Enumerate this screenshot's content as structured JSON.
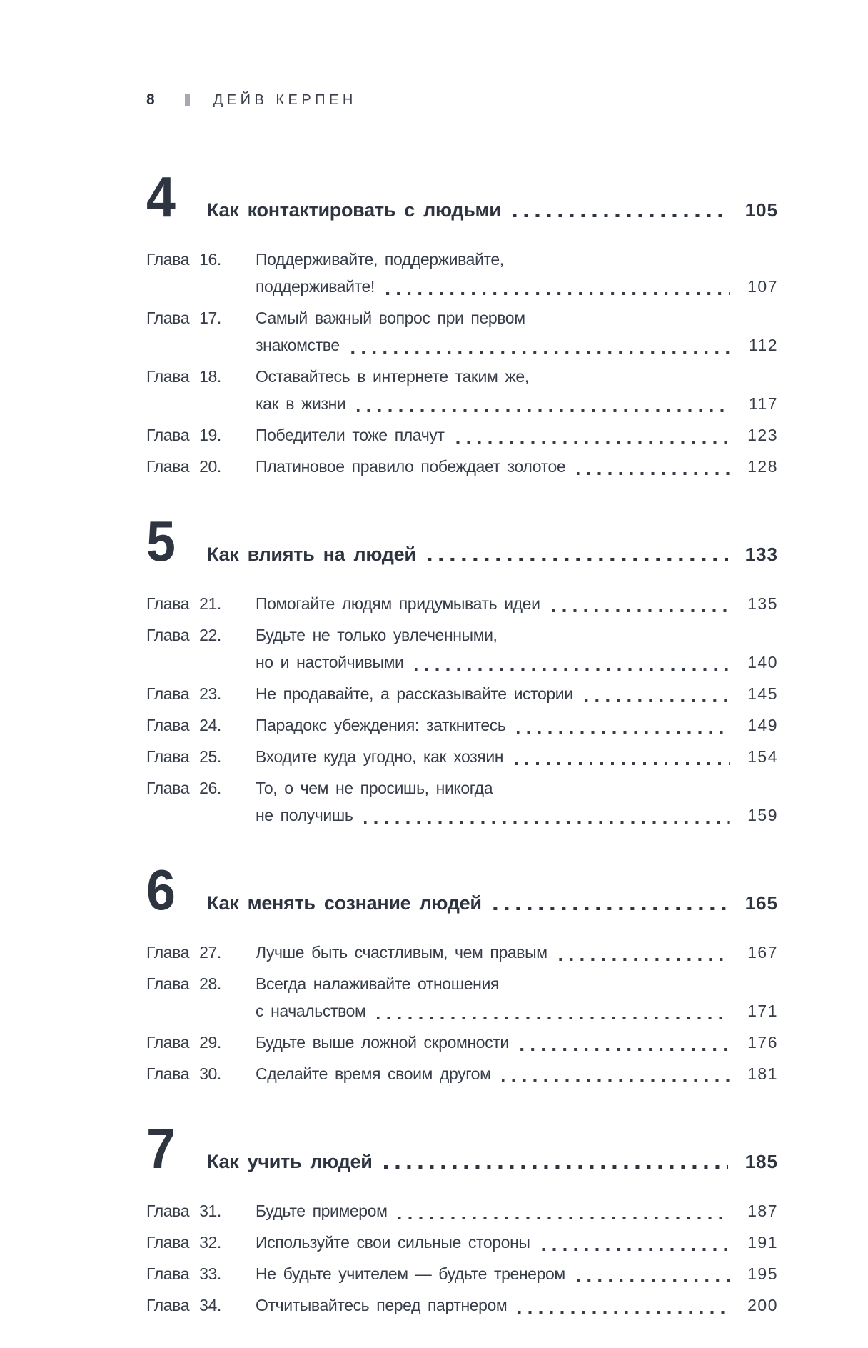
{
  "header": {
    "page_number": "8",
    "author": "ДЕЙВ КЕРПЕН"
  },
  "sections": [
    {
      "number": "4",
      "title": "Как контактировать с людьми",
      "page": "105",
      "chapters": [
        {
          "prefix": "Глава 16.",
          "lines": [
            "Поддерживайте, поддерживайте,",
            "поддерживайте!"
          ],
          "page": "107"
        },
        {
          "prefix": "Глава 17.",
          "lines": [
            "Самый важный вопрос при первом",
            "знакомстве"
          ],
          "page": "112"
        },
        {
          "prefix": "Глава 18.",
          "lines": [
            "Оставайтесь в интернете таким же,",
            "как в жизни"
          ],
          "page": "117"
        },
        {
          "prefix": "Глава 19.",
          "lines": [
            "Победители тоже плачут"
          ],
          "page": "123"
        },
        {
          "prefix": "Глава 20.",
          "lines": [
            "Платиновое правило побеждает золотое"
          ],
          "page": "128"
        }
      ]
    },
    {
      "number": "5",
      "title": "Как влиять на людей",
      "page": "133",
      "chapters": [
        {
          "prefix": "Глава 21.",
          "lines": [
            "Помогайте людям придумывать идеи"
          ],
          "page": "135"
        },
        {
          "prefix": "Глава 22.",
          "lines": [
            "Будьте не только увлеченными,",
            "но и настойчивыми"
          ],
          "page": "140"
        },
        {
          "prefix": "Глава 23.",
          "lines": [
            "Не продавайте, а рассказывайте истории"
          ],
          "page": "145"
        },
        {
          "prefix": "Глава 24.",
          "lines": [
            "Парадокс убеждения: заткнитесь"
          ],
          "page": "149"
        },
        {
          "prefix": "Глава 25.",
          "lines": [
            "Входите куда угодно, как хозяин"
          ],
          "page": "154"
        },
        {
          "prefix": "Глава 26.",
          "lines": [
            "То, о чем не просишь, никогда",
            "не получишь"
          ],
          "page": "159"
        }
      ]
    },
    {
      "number": "6",
      "title": "Как менять сознание людей",
      "page": "165",
      "chapters": [
        {
          "prefix": "Глава 27.",
          "lines": [
            "Лучше быть счастливым, чем правым"
          ],
          "page": "167"
        },
        {
          "prefix": "Глава 28.",
          "lines": [
            "Всегда налаживайте отношения",
            "с начальством"
          ],
          "page": "171"
        },
        {
          "prefix": "Глава 29.",
          "lines": [
            "Будьте выше ложной скромности"
          ],
          "page": "176"
        },
        {
          "prefix": "Глава 30.",
          "lines": [
            "Сделайте время своим другом"
          ],
          "page": "181"
        }
      ]
    },
    {
      "number": "7",
      "title": "Как учить людей",
      "page": "185",
      "chapters": [
        {
          "prefix": "Глава 31.",
          "lines": [
            "Будьте примером"
          ],
          "page": "187"
        },
        {
          "prefix": "Глава 32.",
          "lines": [
            "Используйте свои сильные стороны"
          ],
          "page": "191"
        },
        {
          "prefix": "Глава 33.",
          "lines": [
            "Не будьте учителем — будьте тренером"
          ],
          "page": "195"
        },
        {
          "prefix": "Глава 34.",
          "lines": [
            "Отчитывайтесь перед партнером"
          ],
          "page": "200"
        }
      ]
    }
  ]
}
